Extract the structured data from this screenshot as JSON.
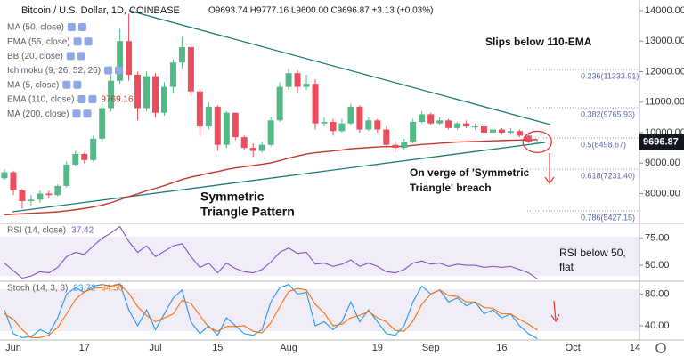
{
  "chart_data": [
    {
      "type": "candlestick",
      "title": "Bitcoin / U.S. Dollar, 1D, COINBASE",
      "ohlc_text": "O9693.74 H9777.16 L9600.00 C9696.87 +3.13 (+0.03%)",
      "indicator_labels": [
        "MA (50, close)",
        "EMA (55, close)",
        "BB (20, close)",
        "Ichimoku (9, 26, 52, 26)",
        "MA (5, close)",
        "EMA (110, close)",
        "MA (200, close)"
      ],
      "up_color": "#53b987",
      "down_color": "#eb4d5c",
      "ylim": [
        7050,
        14350
      ],
      "yticks": [
        {
          "value": 8000,
          "label": "8000.00"
        },
        {
          "value": 9000,
          "label": "9000.00"
        },
        {
          "value": 10000,
          "label": "10000.00"
        },
        {
          "value": 11000,
          "label": "11000.00"
        },
        {
          "value": 12000,
          "label": "12000.00"
        },
        {
          "value": 13000,
          "label": "13000.00"
        },
        {
          "value": 14000,
          "label": "14000.00"
        }
      ],
      "open": [
        8500,
        8700,
        8100,
        7750,
        7800,
        8000,
        7950,
        8250,
        8950,
        9300,
        9100,
        9800,
        10800,
        11700,
        13000,
        11900,
        10800,
        11850,
        10650,
        11500,
        12300,
        12800,
        11350,
        10200,
        10850,
        9600,
        10650,
        9850,
        9500,
        9400,
        9600,
        10400,
        11500,
        11950,
        11500,
        11600,
        10300,
        10350,
        10050,
        10300,
        10850,
        10100,
        10400,
        10100,
        9600,
        9500,
        9700,
        10350,
        10600,
        10300,
        10400,
        10150,
        10300,
        10200,
        10200,
        10000,
        10100,
        10000,
        10050,
        9900,
        9693.74,
        null,
        null,
        null,
        null,
        null,
        null,
        null,
        null,
        null,
        null,
        null
      ],
      "high": [
        8800,
        8750,
        8150,
        7950,
        8100,
        8100,
        8300,
        9050,
        9400,
        9350,
        9900,
        10950,
        11900,
        13400,
        13900,
        12000,
        12000,
        11950,
        11650,
        12400,
        13150,
        12900,
        11400,
        11000,
        10900,
        10700,
        10650,
        9900,
        9650,
        9700,
        10500,
        11650,
        12100,
        12050,
        11900,
        11750,
        10500,
        10450,
        10450,
        10950,
        10900,
        10500,
        10450,
        10200,
        9700,
        9800,
        10450,
        10700,
        10650,
        10500,
        10450,
        10350,
        10400,
        10300,
        10250,
        10150,
        10150,
        10150,
        10100,
        9950,
        9777.16,
        null,
        null,
        null,
        null,
        null,
        null,
        null,
        null,
        null,
        null,
        null
      ],
      "low": [
        8450,
        7950,
        7500,
        7600,
        7700,
        7850,
        7900,
        8200,
        8900,
        9000,
        9050,
        9700,
        10700,
        11600,
        11700,
        10400,
        10700,
        10500,
        10550,
        11300,
        12100,
        11200,
        9900,
        10100,
        9400,
        9500,
        9750,
        9450,
        9200,
        9350,
        9550,
        10350,
        11400,
        11300,
        11400,
        10100,
        10200,
        9900,
        10000,
        10250,
        10000,
        10050,
        10000,
        9500,
        9350,
        9450,
        9650,
        10300,
        10250,
        10250,
        10100,
        10100,
        10150,
        10100,
        9950,
        9950,
        9950,
        9950,
        9850,
        9650,
        9600,
        null,
        null,
        null,
        null,
        null,
        null,
        null,
        null,
        null,
        null,
        null
      ],
      "close": [
        8700,
        8100,
        7750,
        7800,
        8000,
        7950,
        8250,
        8950,
        9300,
        9100,
        9800,
        10800,
        11700,
        13000,
        11900,
        10800,
        11850,
        10650,
        11500,
        12300,
        12800,
        11350,
        10200,
        10850,
        9600,
        10650,
        9850,
        9500,
        9400,
        9600,
        10400,
        11500,
        11950,
        11500,
        11600,
        10300,
        10350,
        10050,
        10300,
        10850,
        10100,
        10400,
        10100,
        9600,
        9500,
        9700,
        10350,
        10600,
        10300,
        10400,
        10150,
        10300,
        10200,
        10200,
        10000,
        10100,
        10000,
        10050,
        9900,
        9700,
        9696.87,
        null,
        null,
        null,
        null,
        null,
        null,
        null,
        null,
        null,
        null,
        null
      ],
      "overlays": [
        {
          "color": "#c0392b",
          "values": [
            7300,
            7320,
            7335,
            7350,
            7365,
            7380,
            7400,
            7430,
            7470,
            7510,
            7560,
            7620,
            7700,
            7800,
            7900,
            7990,
            8090,
            8170,
            8260,
            8360,
            8460,
            8540,
            8600,
            8670,
            8720,
            8790,
            8840,
            8880,
            8920,
            8960,
            9010,
            9080,
            9160,
            9230,
            9300,
            9340,
            9370,
            9400,
            9430,
            9470,
            9490,
            9510,
            9530,
            9540,
            9540,
            9550,
            9580,
            9610,
            9630,
            9650,
            9670,
            9690,
            9700,
            9710,
            9720,
            9730,
            9740,
            9750,
            9755,
            9762,
            9769.16,
            null,
            null,
            null,
            null,
            null,
            null,
            null,
            null,
            null,
            null,
            null
          ]
        }
      ],
      "annotations": [
        [
          "Slips below 110-EMA"
        ],
        [
          "On verge of 'Symmetric",
          "Triangle' breach"
        ],
        [
          "Symmetric",
          "Triangle Pattern"
        ]
      ],
      "fib_labels": [
        "0.236(11333.91)",
        "0.382(9765.93)",
        "0.5(8498.67)",
        "0.618(7231.40)",
        "0.786(5427.15)"
      ]
    },
    {
      "type": "line",
      "title": "RSI (14, close)",
      "color": "#7e57c2",
      "ylim": [
        36,
        88
      ],
      "yticks": [
        {
          "value": 50,
          "label": "50.00"
        },
        {
          "value": 75,
          "label": "75.00"
        }
      ],
      "values": [
        52,
        45,
        38,
        40,
        44,
        43,
        48,
        58,
        62,
        60,
        68,
        75,
        80,
        86,
        72,
        62,
        68,
        58,
        63,
        68,
        70,
        58,
        48,
        52,
        43,
        52,
        47,
        44,
        43,
        46,
        53,
        62,
        66,
        61,
        62,
        51,
        52,
        49,
        51,
        55,
        49,
        52,
        49,
        44,
        43,
        46,
        52,
        54,
        51,
        52,
        49,
        51,
        50,
        50,
        48,
        49,
        48,
        49,
        46,
        43,
        37.42,
        null,
        null,
        null,
        null,
        null,
        null,
        null,
        null,
        null,
        null,
        null
      ],
      "annotations": [
        [
          "RSI below 50,",
          "flat"
        ]
      ]
    },
    {
      "type": "line",
      "title": "Stoch (14, 3, 3)",
      "ylim": [
        22,
        95
      ],
      "yticks": [
        {
          "value": 40,
          "label": "40.00"
        },
        {
          "value": 80,
          "label": "80.00"
        }
      ],
      "categories": [
        null,
        "Jun",
        null,
        null,
        null,
        null,
        null,
        null,
        null,
        "17",
        null,
        null,
        null,
        null,
        null,
        null,
        null,
        "Jul",
        null,
        null,
        null,
        null,
        null,
        null,
        "15",
        null,
        null,
        null,
        null,
        null,
        null,
        null,
        "Aug",
        null,
        null,
        null,
        null,
        null,
        null,
        null,
        null,
        null,
        "19",
        null,
        null,
        null,
        null,
        null,
        "Sep",
        null,
        null,
        null,
        null,
        null,
        null,
        null,
        "16",
        null,
        null,
        null,
        null,
        null,
        null,
        null,
        "Oct",
        null,
        null,
        null,
        null,
        null,
        null,
        "14"
      ],
      "series": [
        {
          "color": "#2196f3",
          "values": [
            60,
            30,
            25,
            26,
            35,
            30,
            50,
            80,
            88,
            82,
            90,
            92,
            90,
            93,
            60,
            40,
            60,
            35,
            55,
            75,
            85,
            45,
            30,
            40,
            28,
            50,
            40,
            30,
            28,
            35,
            70,
            88,
            92,
            80,
            82,
            40,
            45,
            35,
            45,
            70,
            45,
            60,
            45,
            30,
            28,
            40,
            70,
            90,
            80,
            85,
            70,
            75,
            65,
            70,
            55,
            60,
            50,
            55,
            40,
            30,
            23.72,
            null,
            null,
            null,
            null,
            null,
            null,
            null,
            null,
            null,
            null,
            null
          ]
        },
        {
          "color": "#ff6d00",
          "values": [
            55,
            48,
            35,
            25,
            25,
            28,
            38,
            55,
            73,
            83,
            87,
            88,
            90,
            92,
            81,
            64,
            53,
            45,
            50,
            55,
            72,
            68,
            53,
            38,
            33,
            39,
            39,
            40,
            33,
            31,
            44,
            64,
            83,
            87,
            85,
            67,
            56,
            40,
            42,
            50,
            53,
            58,
            50,
            45,
            34,
            33,
            46,
            67,
            80,
            85,
            78,
            77,
            70,
            70,
            63,
            62,
            55,
            55,
            48,
            42,
            34.5,
            null,
            null,
            null,
            null,
            null,
            null,
            null,
            null,
            null,
            null,
            null
          ],
          "value_labels": [
            null,
            null,
            null,
            null,
            null,
            null,
            null,
            null,
            null,
            null,
            null,
            null,
            null,
            null,
            null,
            null,
            null,
            null,
            null,
            null,
            null,
            null,
            null,
            null,
            null,
            null,
            null,
            null,
            null,
            null,
            null,
            null,
            null,
            null,
            null,
            null,
            null,
            null,
            null,
            null,
            null,
            null,
            null,
            null,
            null,
            null,
            null,
            null,
            null,
            null,
            null,
            null,
            null,
            null,
            null,
            null,
            null,
            null,
            null,
            null,
            "34.50",
            null,
            null,
            null,
            null,
            null,
            null,
            null,
            null,
            null,
            null,
            null
          ]
        }
      ]
    }
  ]
}
